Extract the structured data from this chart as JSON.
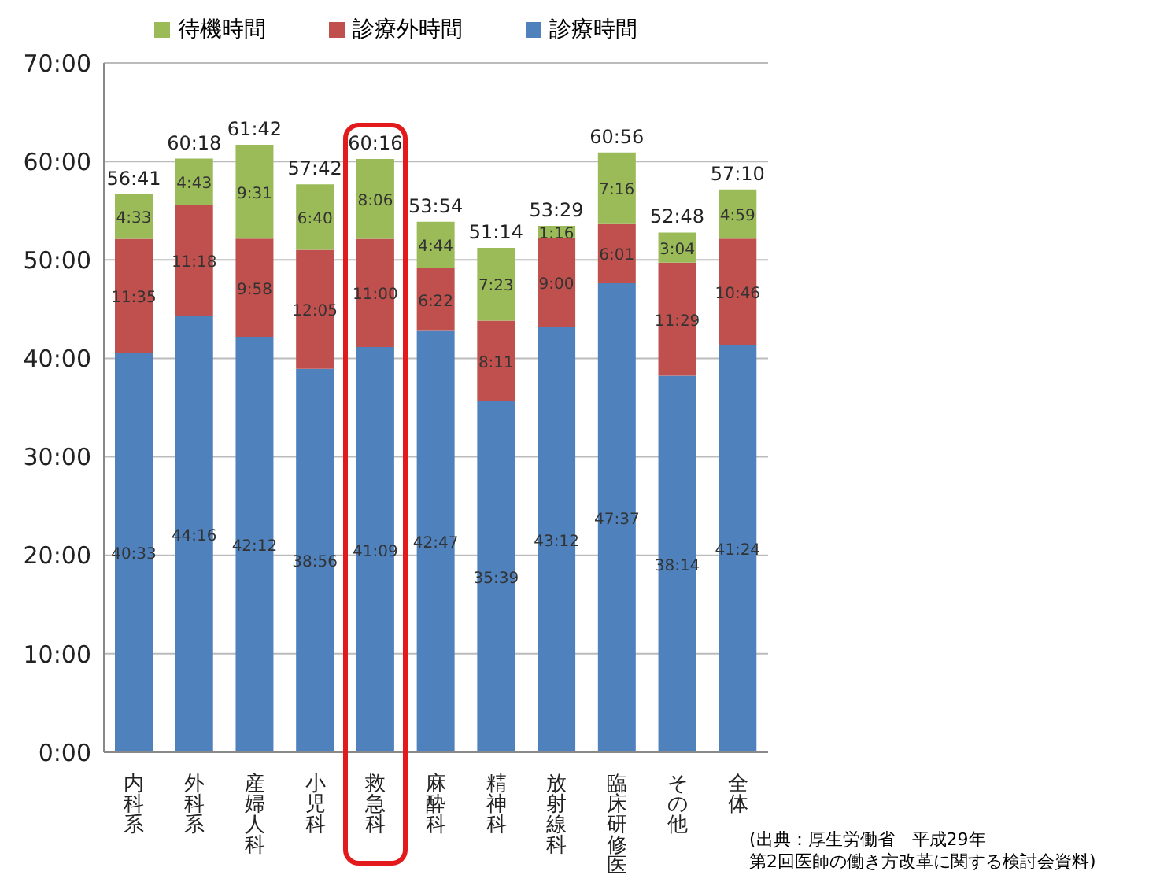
{
  "chart_data": {
    "type": "bar",
    "stacked": true,
    "categories": [
      "内科系",
      "外科系",
      "産婦人科",
      "小児科",
      "救急科",
      "麻酔科",
      "精神科",
      "放射線科",
      "臨床研修医",
      "その他",
      "全体"
    ],
    "series": [
      {
        "name": "診療時間",
        "color": "#4f81bd",
        "values": [
          40.55,
          44.267,
          42.2,
          38.933,
          41.15,
          42.783,
          35.65,
          43.2,
          47.617,
          38.233,
          41.4
        ],
        "value_labels": [
          "40:33",
          "44:16",
          "42:12",
          "38:56",
          "41:09",
          "42:47",
          "35:39",
          "43:12",
          "47:37",
          "38:14",
          "41:24"
        ]
      },
      {
        "name": "診療外時間",
        "color": "#c0504d",
        "values": [
          11.583,
          11.3,
          9.967,
          12.083,
          11,
          6.367,
          8.183,
          9,
          6.017,
          11.483,
          10.767
        ],
        "value_labels": [
          "11:35",
          "11:18",
          "9:58",
          "12:05",
          "11:00",
          "6:22",
          "8:11",
          "9:00",
          "6:01",
          "11:29",
          "10:46"
        ]
      },
      {
        "name": "待機時間",
        "color": "#9bbb59",
        "values": [
          4.55,
          4.717,
          9.517,
          6.667,
          8.1,
          4.733,
          7.383,
          1.267,
          7.267,
          3.067,
          4.983
        ],
        "value_labels": [
          "4:33",
          "4:43",
          "9:31",
          "6:40",
          "8:06",
          "4:44",
          "7:23",
          "1:16",
          "7:16",
          "3:04",
          "4:59"
        ]
      }
    ],
    "totals": [
      "56:41",
      "60:18",
      "61:42",
      "57:42",
      "60:16",
      "53:54",
      "51:14",
      "53:29",
      "60:56",
      "52:48",
      "57:10"
    ],
    "ylim": [
      0,
      70
    ],
    "yticks": [
      {
        "value": 0,
        "label": "0:00"
      },
      {
        "value": 10,
        "label": "10:00"
      },
      {
        "value": 20,
        "label": "20:00"
      },
      {
        "value": 30,
        "label": "30:00"
      },
      {
        "value": 40,
        "label": "40:00"
      },
      {
        "value": 50,
        "label": "50:00"
      },
      {
        "value": 60,
        "label": "60:00"
      },
      {
        "value": 70,
        "label": "70:00"
      }
    ],
    "grid": "y",
    "legend": "top",
    "annotations": [
      "(出典：厚生労働省　平成29年",
      "第2回医師の働き方改革に関する検討会資料)"
    ]
  }
}
